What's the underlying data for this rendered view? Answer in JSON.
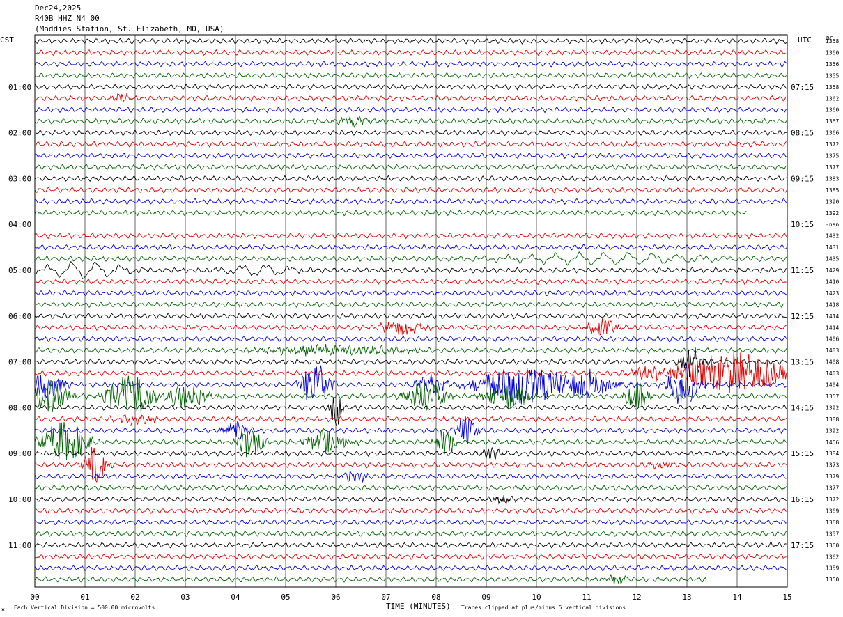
{
  "header": {
    "date": "Dec24,2025",
    "channel": "R40B HHZ N4 00",
    "station": "(Maddies Station, St. Elizabeth, MO, USA)"
  },
  "labels": {
    "left_zone": "CST",
    "right_zone": "UTC",
    "right_col": "DC",
    "xlabel": "TIME (MINUTES)",
    "scale_note": "Each Vertical Division =  500.00 microvolts",
    "clip_note": "Traces clipped at plus/minus 5 vertical divisions",
    "corner_mark": "ж"
  },
  "colors": {
    "cycle": [
      "#000000",
      "#e00000",
      "#0000dd",
      "#006400"
    ],
    "grid": "#000000"
  },
  "chart_data": {
    "type": "line",
    "subtype": "helicorder",
    "x": [
      0,
      1,
      2,
      3,
      4,
      5,
      6,
      7,
      8,
      9,
      10,
      11,
      12,
      13,
      14,
      15
    ],
    "x_ticks": [
      "00",
      "01",
      "02",
      "03",
      "04",
      "05",
      "06",
      "07",
      "08",
      "09",
      "10",
      "11",
      "12",
      "13",
      "14",
      "15"
    ],
    "xlim": [
      0,
      15
    ],
    "rows": 48,
    "left_hour_labels": [
      {
        "row": 4,
        "label": "01:00"
      },
      {
        "row": 8,
        "label": "02:00"
      },
      {
        "row": 12,
        "label": "03:00"
      },
      {
        "row": 16,
        "label": "04:00"
      },
      {
        "row": 20,
        "label": "05:00"
      },
      {
        "row": 24,
        "label": "06:00"
      },
      {
        "row": 28,
        "label": "07:00"
      },
      {
        "row": 32,
        "label": "08:00"
      },
      {
        "row": 36,
        "label": "09:00"
      },
      {
        "row": 40,
        "label": "10:00"
      },
      {
        "row": 44,
        "label": "11:00"
      }
    ],
    "right_hour_labels": [
      {
        "row": 4,
        "label": "07:15"
      },
      {
        "row": 8,
        "label": "08:15"
      },
      {
        "row": 12,
        "label": "09:15"
      },
      {
        "row": 16,
        "label": "10:15"
      },
      {
        "row": 20,
        "label": "11:15"
      },
      {
        "row": 24,
        "label": "12:15"
      },
      {
        "row": 28,
        "label": "13:15"
      },
      {
        "row": 32,
        "label": "14:15"
      },
      {
        "row": 36,
        "label": "15:15"
      },
      {
        "row": 40,
        "label": "16:15"
      },
      {
        "row": 44,
        "label": "17:15"
      }
    ],
    "dc_values": [
      "1358",
      "1360",
      "1356",
      "1355",
      "1358",
      "1362",
      "1360",
      "1367",
      "1366",
      "1372",
      "1375",
      "1377",
      "1383",
      "1385",
      "1390",
      "1392",
      "-nan",
      "1432",
      "1431",
      "1435",
      "1429",
      "1410",
      "1423",
      "1418",
      "1414",
      "1414",
      "1406",
      "1403",
      "1408",
      "1403",
      "1404",
      "1357",
      "1392",
      "1388",
      "1392",
      "1456",
      "1384",
      "1373",
      "1379",
      "1377",
      "1372",
      "1369",
      "1368",
      "1357",
      "1360",
      "1362",
      "1359",
      "1350"
    ],
    "trace_end_minutes": {
      "15": 14.2,
      "47": 13.4
    },
    "blank_rows": [
      16
    ],
    "events": [
      {
        "row": 5,
        "t": 1.7,
        "amp": 0.35,
        "w": 0.25
      },
      {
        "row": 7,
        "t": 6.4,
        "amp": 0.45,
        "w": 0.4
      },
      {
        "row": 20,
        "t": 1.0,
        "amp": 0.9,
        "w": 1.2,
        "slow": true
      },
      {
        "row": 20,
        "t": 4.5,
        "amp": 0.6,
        "w": 1.0,
        "slow": true
      },
      {
        "row": 19,
        "t": 11.5,
        "amp": 0.6,
        "w": 3.0,
        "slow": true
      },
      {
        "row": 25,
        "t": 7.3,
        "amp": 0.7,
        "w": 0.6
      },
      {
        "row": 25,
        "t": 11.3,
        "amp": 0.8,
        "w": 0.4
      },
      {
        "row": 27,
        "t": 6.0,
        "amp": 0.4,
        "w": 2.0
      },
      {
        "row": 28,
        "t": 13.1,
        "amp": 1.4,
        "w": 0.3
      },
      {
        "row": 29,
        "t": 13.9,
        "amp": 1.8,
        "w": 1.4
      },
      {
        "row": 29,
        "t": 12.2,
        "amp": 0.6,
        "w": 0.5
      },
      {
        "row": 30,
        "t": 0.2,
        "amp": 1.2,
        "w": 0.5
      },
      {
        "row": 30,
        "t": 5.6,
        "amp": 2.0,
        "w": 0.4
      },
      {
        "row": 30,
        "t": 7.9,
        "amp": 1.0,
        "w": 0.4
      },
      {
        "row": 30,
        "t": 9.7,
        "amp": 1.8,
        "w": 1.2
      },
      {
        "row": 30,
        "t": 11.0,
        "amp": 1.2,
        "w": 0.8
      },
      {
        "row": 30,
        "t": 12.9,
        "amp": 2.0,
        "w": 0.4
      },
      {
        "row": 31,
        "t": 0.3,
        "amp": 1.4,
        "w": 0.5
      },
      {
        "row": 31,
        "t": 1.9,
        "amp": 2.0,
        "w": 0.6
      },
      {
        "row": 31,
        "t": 3.0,
        "amp": 1.0,
        "w": 0.6
      },
      {
        "row": 31,
        "t": 7.8,
        "amp": 1.6,
        "w": 0.5
      },
      {
        "row": 31,
        "t": 9.4,
        "amp": 1.2,
        "w": 0.6
      },
      {
        "row": 31,
        "t": 12.0,
        "amp": 1.3,
        "w": 0.3
      },
      {
        "row": 32,
        "t": 6.0,
        "amp": 2.0,
        "w": 0.15
      },
      {
        "row": 33,
        "t": 2.0,
        "amp": 0.5,
        "w": 0.5
      },
      {
        "row": 34,
        "t": 4.0,
        "amp": 0.9,
        "w": 0.3
      },
      {
        "row": 34,
        "t": 8.6,
        "amp": 1.4,
        "w": 0.3
      },
      {
        "row": 35,
        "t": 0.6,
        "amp": 1.8,
        "w": 0.6
      },
      {
        "row": 35,
        "t": 4.3,
        "amp": 1.8,
        "w": 0.3
      },
      {
        "row": 35,
        "t": 5.8,
        "amp": 1.0,
        "w": 0.6
      },
      {
        "row": 35,
        "t": 8.2,
        "amp": 1.2,
        "w": 0.3
      },
      {
        "row": 36,
        "t": 9.1,
        "amp": 0.5,
        "w": 0.3
      },
      {
        "row": 37,
        "t": 1.2,
        "amp": 1.6,
        "w": 0.3
      },
      {
        "row": 37,
        "t": 12.5,
        "amp": 0.4,
        "w": 0.3
      },
      {
        "row": 38,
        "t": 6.4,
        "amp": 0.6,
        "w": 0.3
      },
      {
        "row": 40,
        "t": 9.3,
        "amp": 0.4,
        "w": 0.3
      },
      {
        "row": 47,
        "t": 11.6,
        "amp": 0.4,
        "w": 0.3
      }
    ]
  }
}
